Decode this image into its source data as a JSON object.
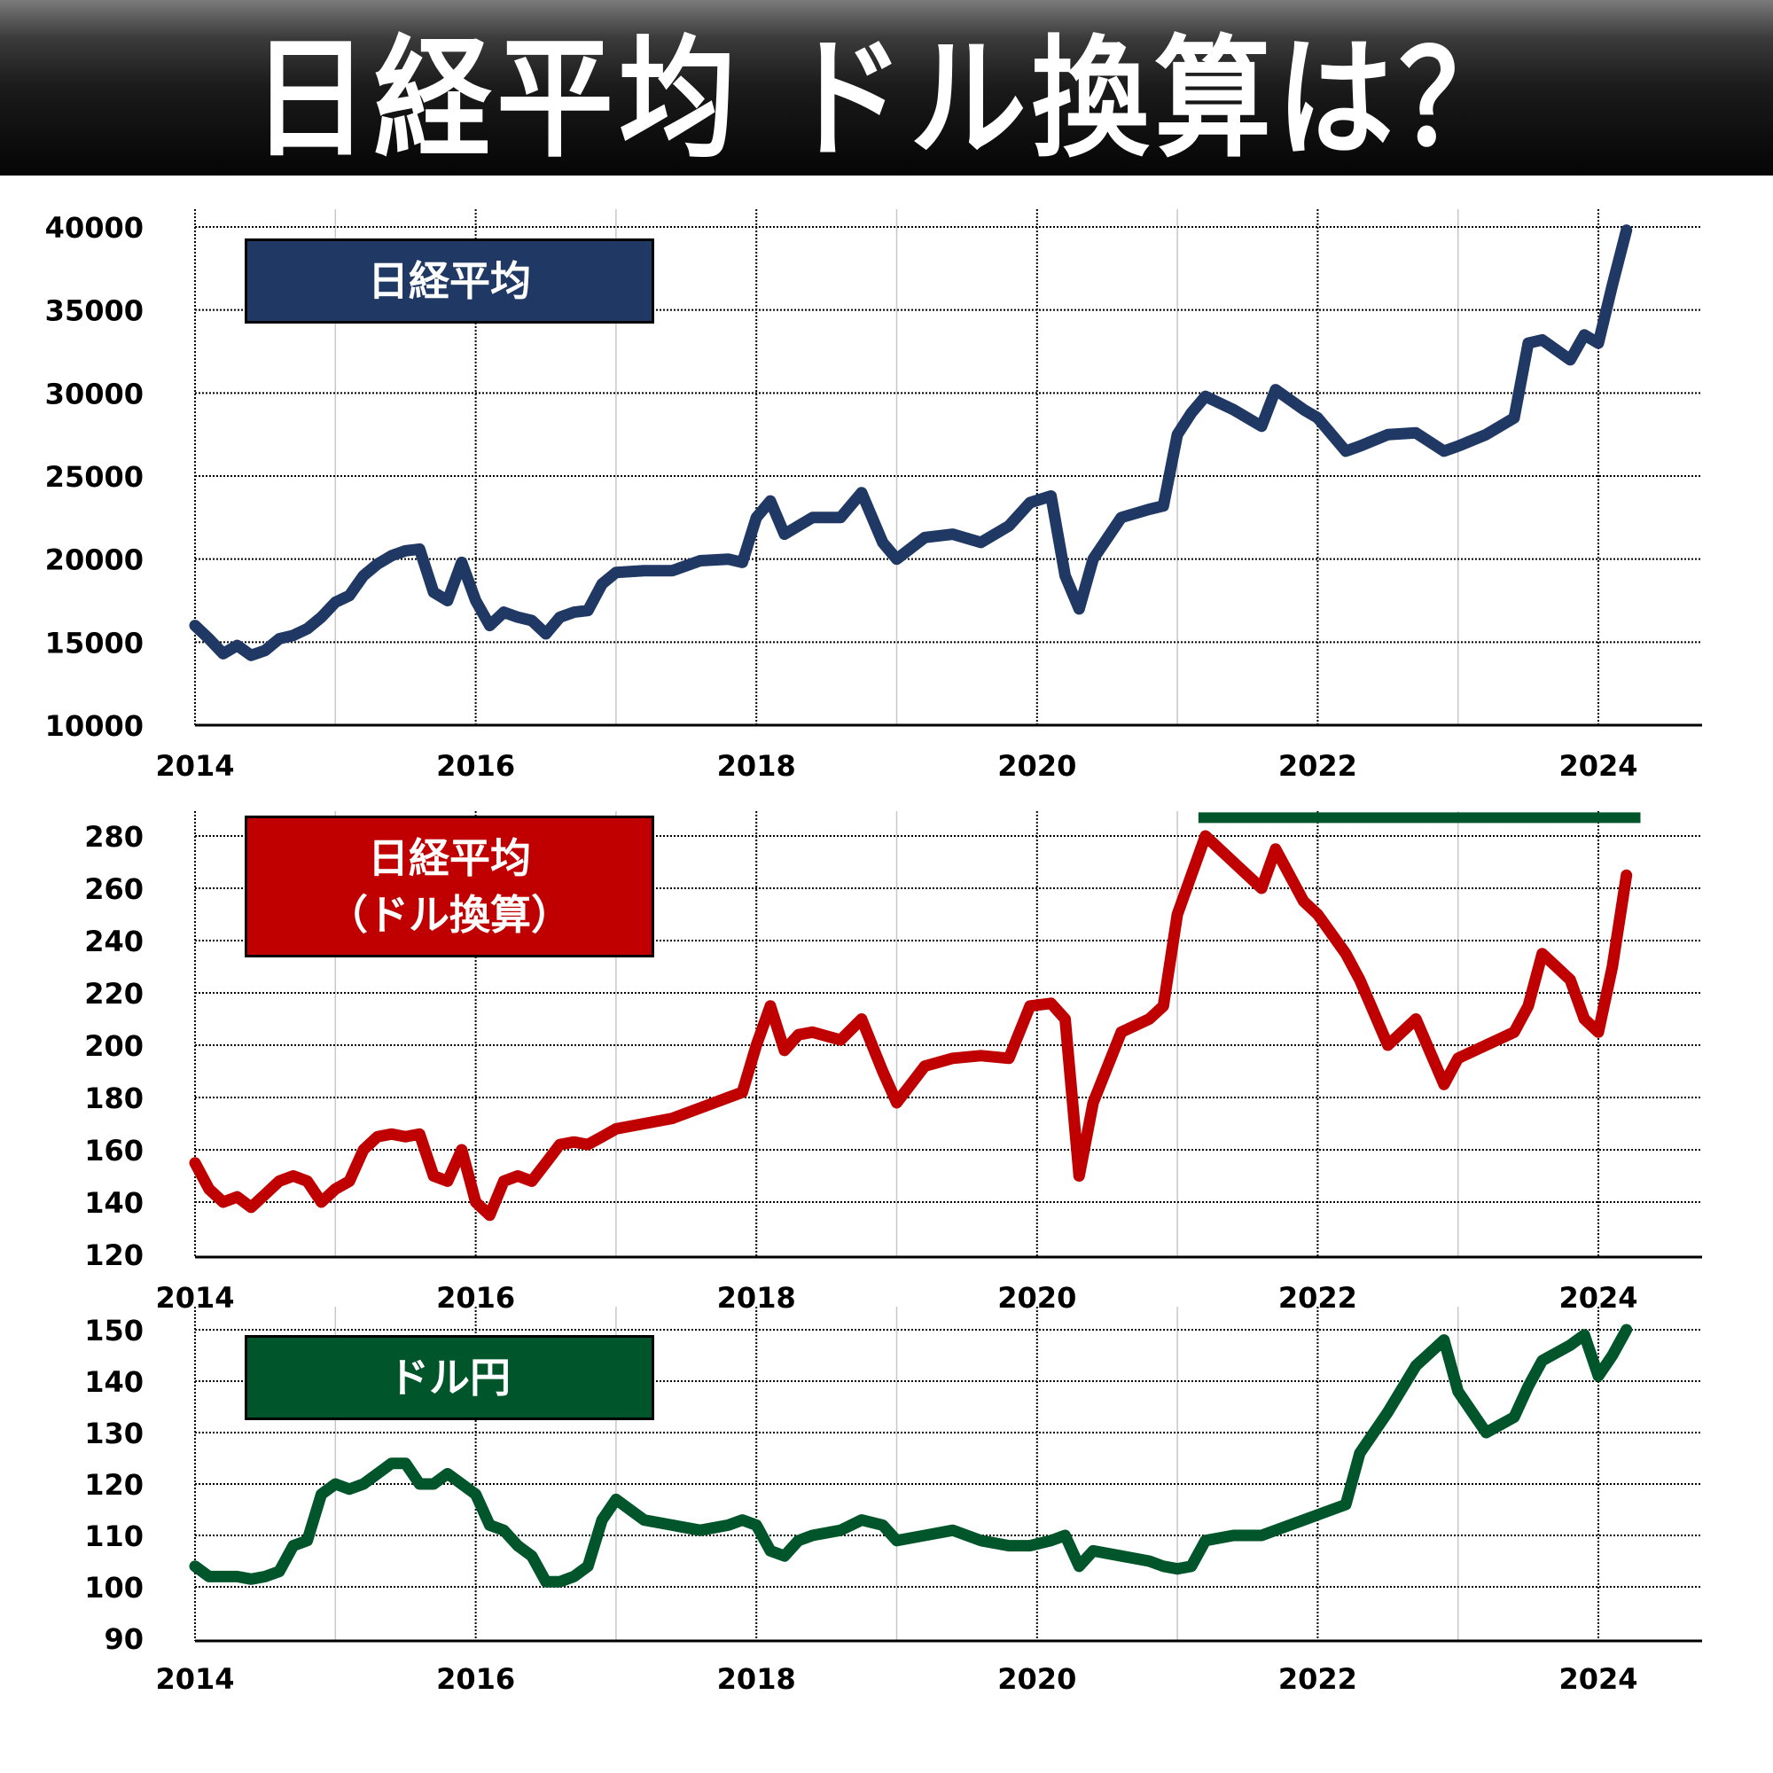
{
  "header": {
    "title": "日経平均 ドル換算は？"
  },
  "panels": [
    {
      "label_lines": [
        "日経平均"
      ],
      "label_bg": "#203864",
      "line_color": "#203864",
      "y_ticks": [
        "40000",
        "35000",
        "30000",
        "25000",
        "20000",
        "15000",
        "10000"
      ],
      "x_ticks": [
        "2014",
        "2016",
        "2018",
        "2020",
        "2022",
        "2024"
      ]
    },
    {
      "label_lines": [
        "日経平均",
        "（ドル換算）"
      ],
      "label_bg": "#C00000",
      "line_color": "#C00000",
      "y_ticks": [
        "280",
        "260",
        "240",
        "220",
        "200",
        "180",
        "160",
        "140",
        "120"
      ],
      "x_ticks": [
        "2014",
        "2016",
        "2018",
        "2020",
        "2022",
        "2024"
      ],
      "reference_line_color": "#00562A"
    },
    {
      "label_lines": [
        "ドル円"
      ],
      "label_bg": "#00562A",
      "line_color": "#00562A",
      "y_ticks": [
        "150",
        "140",
        "130",
        "120",
        "110",
        "100",
        "90"
      ],
      "x_ticks": [
        "2014",
        "2016",
        "2018",
        "2020",
        "2022",
        "2024"
      ]
    }
  ],
  "chart_data": [
    {
      "type": "line",
      "title": "日経平均",
      "xlabel": "",
      "ylabel": "",
      "ylim": [
        10000,
        40000
      ],
      "xlim": [
        2014.0,
        2024.6
      ],
      "grid": true,
      "x": [
        2014.0,
        2014.1,
        2014.2,
        2014.3,
        2014.4,
        2014.5,
        2014.6,
        2014.7,
        2014.8,
        2014.9,
        2015.0,
        2015.1,
        2015.2,
        2015.3,
        2015.4,
        2015.5,
        2015.6,
        2015.7,
        2015.8,
        2015.9,
        2016.0,
        2016.1,
        2016.2,
        2016.3,
        2016.4,
        2016.5,
        2016.6,
        2016.7,
        2016.8,
        2016.9,
        2017.0,
        2017.2,
        2017.4,
        2017.6,
        2017.8,
        2017.9,
        2018.0,
        2018.1,
        2018.2,
        2018.3,
        2018.4,
        2018.6,
        2018.75,
        2018.9,
        2019.0,
        2019.2,
        2019.4,
        2019.6,
        2019.8,
        2019.95,
        2020.1,
        2020.2,
        2020.3,
        2020.4,
        2020.6,
        2020.8,
        2020.9,
        2021.0,
        2021.1,
        2021.2,
        2021.4,
        2021.6,
        2021.7,
        2021.9,
        2022.0,
        2022.2,
        2022.3,
        2022.5,
        2022.7,
        2022.9,
        2023.0,
        2023.2,
        2023.4,
        2023.5,
        2023.6,
        2023.8,
        2023.9,
        2024.0,
        2024.1,
        2024.2
      ],
      "series": [
        {
          "name": "日経平均",
          "values": [
            16000,
            15200,
            14300,
            14800,
            14200,
            14500,
            15200,
            15400,
            15800,
            16500,
            17400,
            17800,
            19000,
            19700,
            20200,
            20500,
            20600,
            18000,
            17500,
            19800,
            17500,
            16000,
            16800,
            16500,
            16300,
            15500,
            16500,
            16800,
            16900,
            18500,
            19200,
            19300,
            19300,
            19900,
            20000,
            19800,
            22500,
            23500,
            21500,
            22000,
            22500,
            22500,
            24000,
            21000,
            20000,
            21300,
            21500,
            21000,
            22000,
            23400,
            23800,
            19000,
            17000,
            20000,
            22500,
            23000,
            23200,
            27500,
            28800,
            29800,
            29000,
            28000,
            30200,
            29000,
            28500,
            26500,
            26800,
            27500,
            27600,
            26500,
            26800,
            27500,
            28500,
            33000,
            33200,
            32000,
            33500,
            33000,
            36500,
            39800
          ]
        }
      ]
    },
    {
      "type": "line",
      "title": "日経平均（ドル換算）",
      "xlabel": "",
      "ylabel": "",
      "ylim": [
        120,
        280
      ],
      "xlim": [
        2014.0,
        2024.6
      ],
      "grid": true,
      "annotations": [
        {
          "type": "hline",
          "y": 287,
          "x_start": 2021.15,
          "x_end": 2024.3,
          "color": "#00562A"
        }
      ],
      "x": [
        2014.0,
        2014.1,
        2014.2,
        2014.3,
        2014.4,
        2014.5,
        2014.6,
        2014.7,
        2014.8,
        2014.9,
        2015.0,
        2015.1,
        2015.2,
        2015.3,
        2015.4,
        2015.5,
        2015.6,
        2015.7,
        2015.8,
        2015.9,
        2016.0,
        2016.1,
        2016.2,
        2016.3,
        2016.4,
        2016.5,
        2016.6,
        2016.7,
        2016.8,
        2016.9,
        2017.0,
        2017.2,
        2017.4,
        2017.6,
        2017.8,
        2017.9,
        2018.0,
        2018.1,
        2018.2,
        2018.3,
        2018.4,
        2018.6,
        2018.75,
        2018.9,
        2019.0,
        2019.2,
        2019.4,
        2019.6,
        2019.8,
        2019.95,
        2020.1,
        2020.2,
        2020.3,
        2020.4,
        2020.6,
        2020.8,
        2020.9,
        2021.0,
        2021.1,
        2021.2,
        2021.4,
        2021.6,
        2021.7,
        2021.9,
        2022.0,
        2022.2,
        2022.3,
        2022.5,
        2022.7,
        2022.9,
        2023.0,
        2023.2,
        2023.4,
        2023.5,
        2023.6,
        2023.8,
        2023.9,
        2024.0,
        2024.1,
        2024.2
      ],
      "series": [
        {
          "name": "日経平均（ドル換算）",
          "values": [
            155,
            145,
            140,
            142,
            138,
            143,
            148,
            150,
            148,
            140,
            145,
            148,
            160,
            165,
            166,
            165,
            166,
            150,
            148,
            160,
            140,
            135,
            148,
            150,
            148,
            155,
            162,
            163,
            162,
            165,
            168,
            170,
            172,
            176,
            180,
            182,
            200,
            215,
            198,
            204,
            205,
            202,
            210,
            190,
            178,
            192,
            195,
            196,
            195,
            215,
            216,
            210,
            150,
            178,
            205,
            210,
            215,
            250,
            265,
            280,
            270,
            260,
            275,
            255,
            250,
            235,
            225,
            200,
            210,
            185,
            195,
            200,
            205,
            215,
            235,
            225,
            210,
            205,
            230,
            265
          ]
        }
      ]
    },
    {
      "type": "line",
      "title": "ドル円",
      "xlabel": "",
      "ylabel": "",
      "ylim": [
        90,
        150
      ],
      "xlim": [
        2014.0,
        2024.6
      ],
      "grid": true,
      "x": [
        2014.0,
        2014.1,
        2014.2,
        2014.3,
        2014.4,
        2014.5,
        2014.6,
        2014.7,
        2014.8,
        2014.9,
        2015.0,
        2015.1,
        2015.2,
        2015.3,
        2015.4,
        2015.5,
        2015.6,
        2015.7,
        2015.8,
        2015.9,
        2016.0,
        2016.1,
        2016.2,
        2016.3,
        2016.4,
        2016.5,
        2016.6,
        2016.7,
        2016.8,
        2016.9,
        2017.0,
        2017.2,
        2017.4,
        2017.6,
        2017.8,
        2017.9,
        2018.0,
        2018.1,
        2018.2,
        2018.3,
        2018.4,
        2018.6,
        2018.75,
        2018.9,
        2019.0,
        2019.2,
        2019.4,
        2019.6,
        2019.8,
        2019.95,
        2020.1,
        2020.2,
        2020.3,
        2020.4,
        2020.6,
        2020.8,
        2020.9,
        2021.0,
        2021.1,
        2021.2,
        2021.4,
        2021.6,
        2021.7,
        2021.9,
        2022.0,
        2022.2,
        2022.3,
        2022.5,
        2022.7,
        2022.9,
        2023.0,
        2023.2,
        2023.4,
        2023.5,
        2023.6,
        2023.8,
        2023.9,
        2024.0,
        2024.1,
        2024.2
      ],
      "series": [
        {
          "name": "ドル円",
          "values": [
            104,
            102,
            102,
            102,
            101.5,
            102,
            103,
            108,
            109,
            118,
            120,
            119,
            120,
            122,
            124,
            124,
            120,
            120,
            122,
            120,
            118,
            112,
            111,
            108,
            106,
            101,
            101,
            102,
            104,
            113,
            117,
            113,
            112,
            111,
            112,
            113,
            112,
            107,
            106,
            109,
            110,
            111,
            113,
            112,
            109,
            110,
            111,
            109,
            108,
            108,
            109,
            110,
            104,
            107,
            106,
            105,
            104,
            103.5,
            104,
            109,
            110,
            110,
            111,
            113,
            114,
            116,
            126,
            134,
            143,
            148,
            138,
            130,
            133,
            139,
            144,
            147,
            149,
            141,
            145,
            150
          ]
        }
      ]
    }
  ]
}
